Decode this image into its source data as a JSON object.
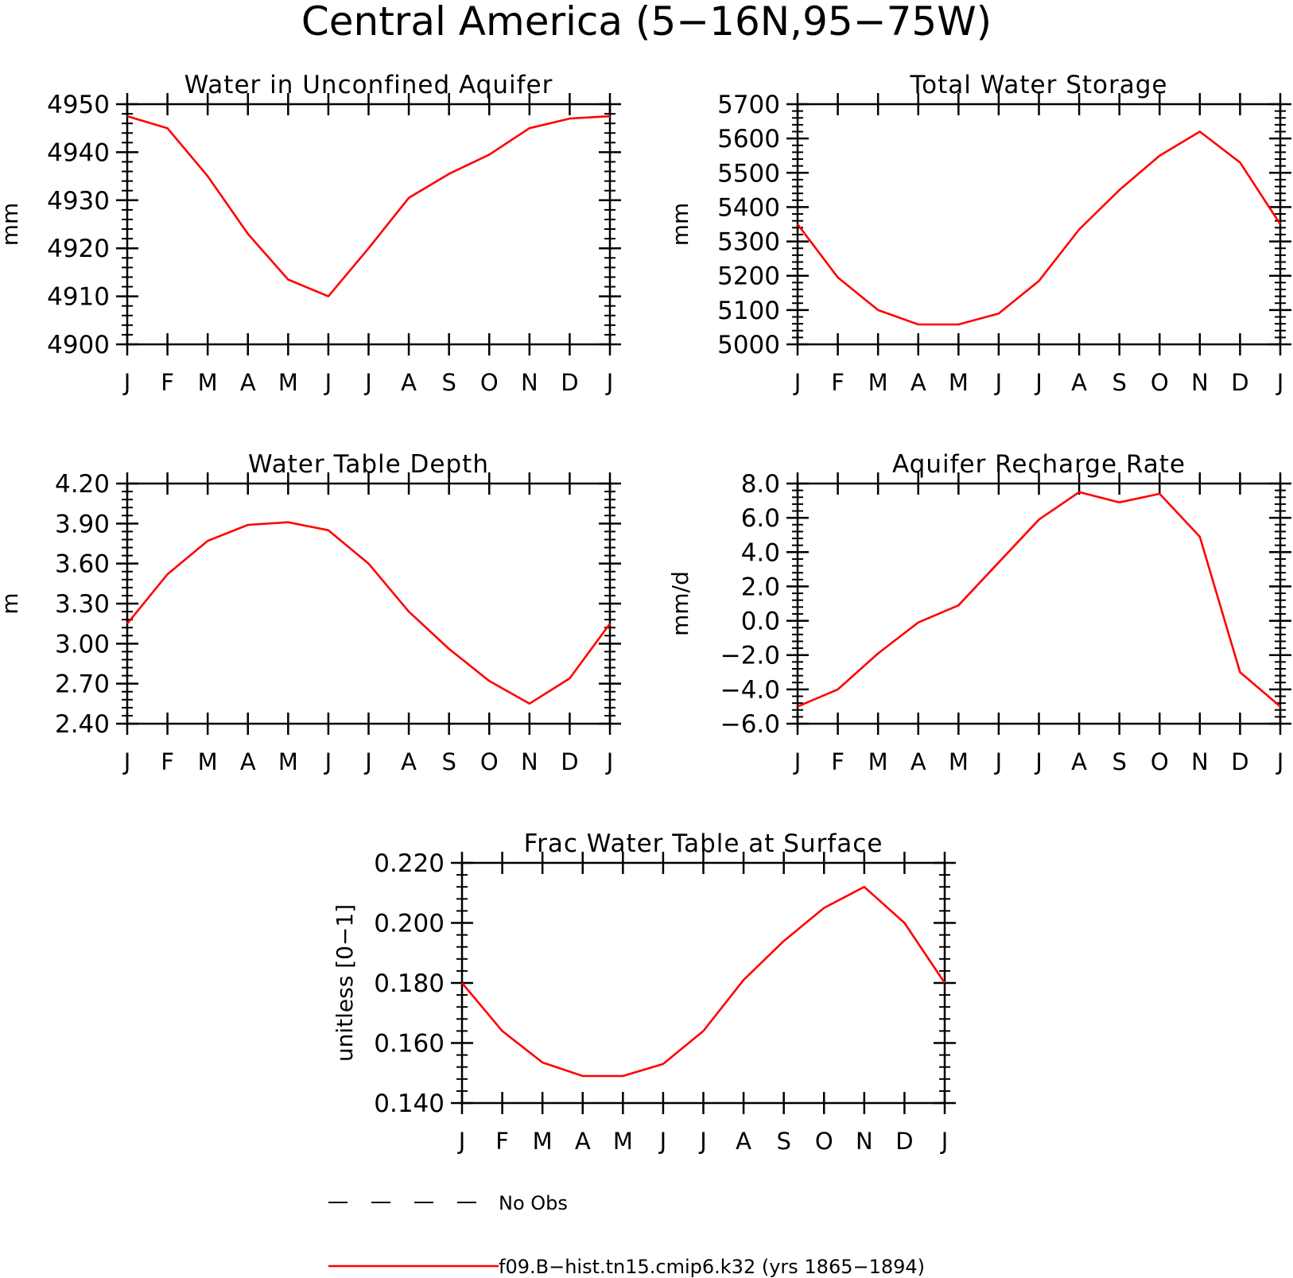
{
  "figure": {
    "title": "Central America (5−16N,95−75W)"
  },
  "chart_data": [
    {
      "type": "line",
      "title": "Water in Unconfined Aquifer",
      "xlabel": "",
      "ylabel": "mm",
      "categories": [
        "J",
        "F",
        "M",
        "A",
        "M",
        "J",
        "J",
        "A",
        "S",
        "O",
        "N",
        "D",
        "J"
      ],
      "yticks": [
        "4950",
        "4940",
        "4930",
        "4920",
        "4910",
        "4900"
      ],
      "ylim": [
        4900,
        4950
      ],
      "series": [
        {
          "values": [
            4947.5,
            4945,
            4935,
            4923,
            4913.5,
            4910,
            4920,
            4930.5,
            4935.5,
            4939.5,
            4945,
            4947,
            4947.5
          ]
        }
      ]
    },
    {
      "type": "line",
      "title": "Total Water Storage",
      "xlabel": "",
      "ylabel": "mm",
      "categories": [
        "J",
        "F",
        "M",
        "A",
        "M",
        "J",
        "J",
        "A",
        "S",
        "O",
        "N",
        "D",
        "J"
      ],
      "yticks": [
        "5700",
        "5600",
        "5500",
        "5400",
        "5300",
        "5200",
        "5100",
        "5000"
      ],
      "ylim": [
        5000,
        5700
      ],
      "series": [
        {
          "values": [
            5350,
            5195,
            5100,
            5058,
            5058,
            5090,
            5185,
            5335,
            5450,
            5550,
            5620,
            5530,
            5350
          ]
        }
      ]
    },
    {
      "type": "line",
      "title": "Water Table Depth",
      "xlabel": "",
      "ylabel": "m",
      "categories": [
        "J",
        "F",
        "M",
        "A",
        "M",
        "J",
        "J",
        "A",
        "S",
        "O",
        "N",
        "D",
        "J"
      ],
      "yticks": [
        "4.20",
        "3.90",
        "3.60",
        "3.30",
        "3.00",
        "2.70",
        "2.40"
      ],
      "ylim": [
        2.4,
        4.2
      ],
      "series": [
        {
          "values": [
            3.15,
            3.52,
            3.77,
            3.89,
            3.91,
            3.85,
            3.6,
            3.24,
            2.96,
            2.72,
            2.55,
            2.74,
            3.15
          ]
        }
      ]
    },
    {
      "type": "line",
      "title": "Aquifer Recharge Rate",
      "xlabel": "",
      "ylabel": "mm/d",
      "categories": [
        "J",
        "F",
        "M",
        "A",
        "M",
        "J",
        "J",
        "A",
        "S",
        "O",
        "N",
        "D",
        "J"
      ],
      "yticks": [
        "8.0",
        "6.0",
        "4.0",
        "2.0",
        "0.0",
        "−2.0",
        "−4.0",
        "−6.0"
      ],
      "ylim": [
        -6,
        8
      ],
      "series": [
        {
          "values": [
            -5.0,
            -4.0,
            -1.9,
            -0.1,
            0.9,
            3.4,
            5.9,
            7.5,
            6.9,
            7.4,
            4.9,
            -3.0,
            -5.0
          ]
        }
      ]
    },
    {
      "type": "line",
      "title": "Frac Water Table at Surface",
      "xlabel": "",
      "ylabel": "unitless [0−1]",
      "categories": [
        "J",
        "F",
        "M",
        "A",
        "M",
        "J",
        "J",
        "A",
        "S",
        "O",
        "N",
        "D",
        "J"
      ],
      "yticks": [
        "0.220",
        "0.200",
        "0.180",
        "0.160",
        "0.140"
      ],
      "ylim": [
        0.14,
        0.22
      ],
      "series": [
        {
          "values": [
            0.18,
            0.164,
            0.1535,
            0.149,
            0.149,
            0.153,
            0.164,
            0.181,
            0.194,
            0.205,
            0.212,
            0.2,
            0.18
          ]
        }
      ]
    }
  ],
  "legend": {
    "entries": [
      {
        "label": "No Obs",
        "style": "dashed",
        "color": "#000000"
      },
      {
        "label": "f09.B−hist.tn15.cmip6.k32 (yrs 1865−1894)",
        "style": "solid",
        "color": "#ff0000"
      }
    ]
  },
  "colors": {
    "series": "#ff0000",
    "axes": "#000000"
  }
}
